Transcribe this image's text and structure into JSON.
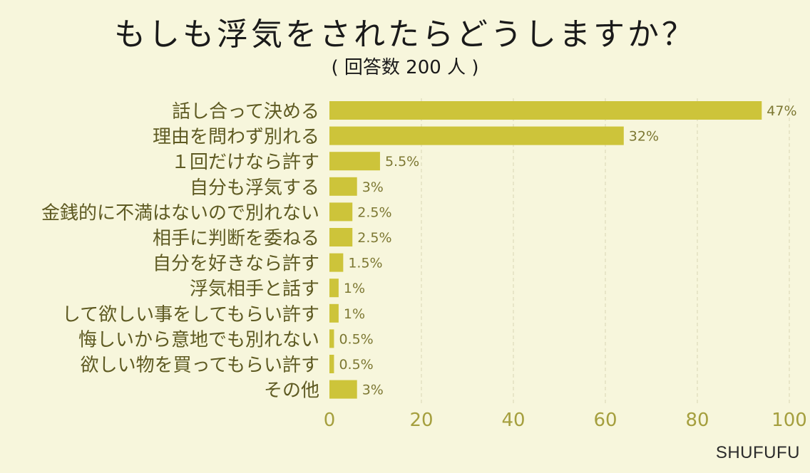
{
  "title": "もしも浮気をされたらどうしますか？",
  "subtitle": "( 回答数 200 人 )",
  "brand": "SHUFUFU",
  "colors": {
    "background": "#f7f6dc",
    "bar": "#cdc43a",
    "category_text": "#5e5a22",
    "tick_text": "#a59f3e",
    "value_text": "#7d7833",
    "grid": "#d9d6b4"
  },
  "chart_data": {
    "type": "bar",
    "orientation": "horizontal",
    "categories": [
      "話し合って決める",
      "理由を問わず別れる",
      "１回だけなら許す",
      "自分も浮気する",
      "金銭的に不満はないので別れない",
      "相手に判断を委ねる",
      "自分を好きなら許す",
      "浮気相手と話す",
      "して欲しい事をしてもらい許す",
      "悔しいから意地でも別れない",
      "欲しい物を買ってもらい許す",
      "その他"
    ],
    "values": [
      47,
      32,
      5.5,
      3,
      2.5,
      2.5,
      1.5,
      1,
      1,
      0.5,
      0.5,
      3
    ],
    "value_labels": [
      "47%",
      "32%",
      "5.5%",
      "3%",
      "2.5%",
      "2.5%",
      "1.5%",
      "1%",
      "1%",
      "0.5%",
      "0.5%",
      "3%"
    ],
    "xlim": [
      0,
      100
    ],
    "xticks": [
      "0",
      "20",
      "40",
      "60",
      "80",
      "100"
    ],
    "grid": "vertical dashed"
  }
}
